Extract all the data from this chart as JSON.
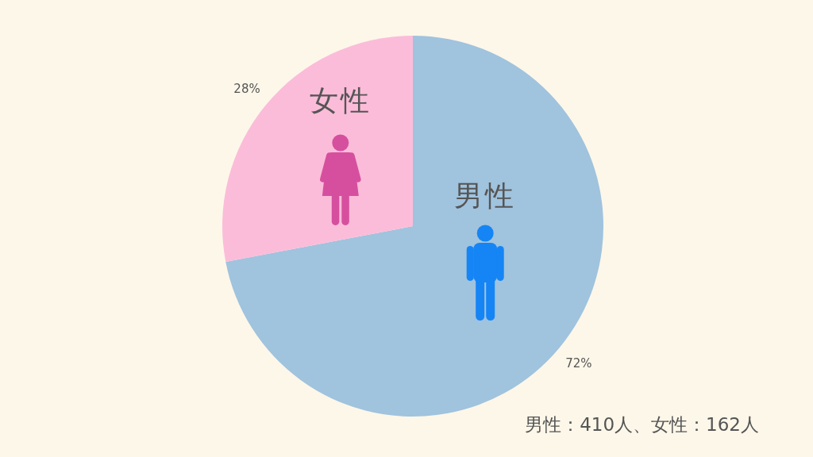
{
  "chart_data": {
    "type": "pie",
    "categories": [
      "男性",
      "女性"
    ],
    "values": [
      72,
      28
    ],
    "colors": [
      "#a0c3de",
      "#fbbcd9"
    ],
    "value_labels": [
      "72%",
      "28%"
    ],
    "annotations": [
      "男性：410人、女性：162人"
    ]
  }
}
